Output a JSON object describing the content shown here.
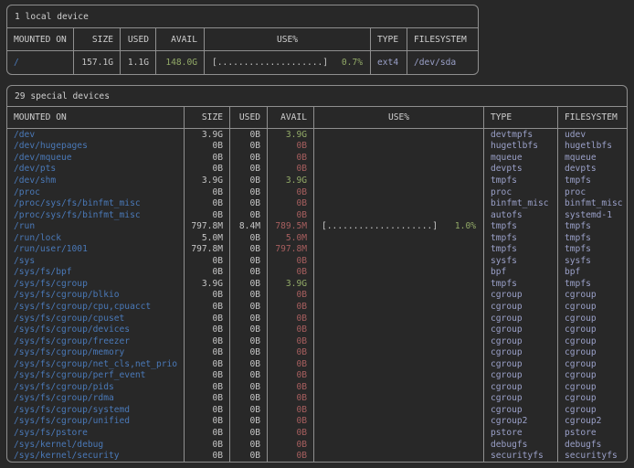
{
  "theme": {
    "bg": "#282828",
    "border": "#8f8f8f",
    "text": "#c6c6c6",
    "heading": "#cfcfcf",
    "blue": "#4a79b8",
    "green": "#93ab68",
    "red": "#a85f5f",
    "lavender": "#9aa0c8"
  },
  "local_table": {
    "title": "1 local device",
    "headers": [
      "MOUNTED ON",
      "SIZE",
      "USED",
      "AVAIL",
      "USE%",
      "TYPE",
      "FILESYSTEM"
    ],
    "rows": [
      {
        "mounted": "/",
        "size": "157.1G",
        "used": "1.1G",
        "avail": "148.0G",
        "avail_color": "green",
        "bar": "[....................]",
        "pct": "0.7%",
        "type": "ext4",
        "filesystem": "/dev/sda"
      }
    ]
  },
  "special_table": {
    "title": "29 special devices",
    "headers": [
      "MOUNTED ON",
      "SIZE",
      "USED",
      "AVAIL",
      "USE%",
      "TYPE",
      "FILESYSTEM"
    ],
    "rows": [
      {
        "mounted": "/dev",
        "size": "3.9G",
        "used": "0B",
        "avail": "3.9G",
        "avail_color": "green",
        "bar": "",
        "pct": "",
        "type": "devtmpfs",
        "filesystem": "udev"
      },
      {
        "mounted": "/dev/hugepages",
        "size": "0B",
        "used": "0B",
        "avail": "0B",
        "avail_color": "red",
        "bar": "",
        "pct": "",
        "type": "hugetlbfs",
        "filesystem": "hugetlbfs"
      },
      {
        "mounted": "/dev/mqueue",
        "size": "0B",
        "used": "0B",
        "avail": "0B",
        "avail_color": "red",
        "bar": "",
        "pct": "",
        "type": "mqueue",
        "filesystem": "mqueue"
      },
      {
        "mounted": "/dev/pts",
        "size": "0B",
        "used": "0B",
        "avail": "0B",
        "avail_color": "red",
        "bar": "",
        "pct": "",
        "type": "devpts",
        "filesystem": "devpts"
      },
      {
        "mounted": "/dev/shm",
        "size": "3.9G",
        "used": "0B",
        "avail": "3.9G",
        "avail_color": "green",
        "bar": "",
        "pct": "",
        "type": "tmpfs",
        "filesystem": "tmpfs"
      },
      {
        "mounted": "/proc",
        "size": "0B",
        "used": "0B",
        "avail": "0B",
        "avail_color": "red",
        "bar": "",
        "pct": "",
        "type": "proc",
        "filesystem": "proc"
      },
      {
        "mounted": "/proc/sys/fs/binfmt_misc",
        "size": "0B",
        "used": "0B",
        "avail": "0B",
        "avail_color": "red",
        "bar": "",
        "pct": "",
        "type": "binfmt_misc",
        "filesystem": "binfmt_misc"
      },
      {
        "mounted": "/proc/sys/fs/binfmt_misc",
        "size": "0B",
        "used": "0B",
        "avail": "0B",
        "avail_color": "red",
        "bar": "",
        "pct": "",
        "type": "autofs",
        "filesystem": "systemd-1"
      },
      {
        "mounted": "/run",
        "size": "797.8M",
        "used": "8.4M",
        "avail": "789.5M",
        "avail_color": "red",
        "bar": "[....................]",
        "pct": "1.0%",
        "type": "tmpfs",
        "filesystem": "tmpfs"
      },
      {
        "mounted": "/run/lock",
        "size": "5.0M",
        "used": "0B",
        "avail": "5.0M",
        "avail_color": "red",
        "bar": "",
        "pct": "",
        "type": "tmpfs",
        "filesystem": "tmpfs"
      },
      {
        "mounted": "/run/user/1001",
        "size": "797.8M",
        "used": "0B",
        "avail": "797.8M",
        "avail_color": "red",
        "bar": "",
        "pct": "",
        "type": "tmpfs",
        "filesystem": "tmpfs"
      },
      {
        "mounted": "/sys",
        "size": "0B",
        "used": "0B",
        "avail": "0B",
        "avail_color": "red",
        "bar": "",
        "pct": "",
        "type": "sysfs",
        "filesystem": "sysfs"
      },
      {
        "mounted": "/sys/fs/bpf",
        "size": "0B",
        "used": "0B",
        "avail": "0B",
        "avail_color": "red",
        "bar": "",
        "pct": "",
        "type": "bpf",
        "filesystem": "bpf"
      },
      {
        "mounted": "/sys/fs/cgroup",
        "size": "3.9G",
        "used": "0B",
        "avail": "3.9G",
        "avail_color": "green",
        "bar": "",
        "pct": "",
        "type": "tmpfs",
        "filesystem": "tmpfs"
      },
      {
        "mounted": "/sys/fs/cgroup/blkio",
        "size": "0B",
        "used": "0B",
        "avail": "0B",
        "avail_color": "red",
        "bar": "",
        "pct": "",
        "type": "cgroup",
        "filesystem": "cgroup"
      },
      {
        "mounted": "/sys/fs/cgroup/cpu,cpuacct",
        "size": "0B",
        "used": "0B",
        "avail": "0B",
        "avail_color": "red",
        "bar": "",
        "pct": "",
        "type": "cgroup",
        "filesystem": "cgroup"
      },
      {
        "mounted": "/sys/fs/cgroup/cpuset",
        "size": "0B",
        "used": "0B",
        "avail": "0B",
        "avail_color": "red",
        "bar": "",
        "pct": "",
        "type": "cgroup",
        "filesystem": "cgroup"
      },
      {
        "mounted": "/sys/fs/cgroup/devices",
        "size": "0B",
        "used": "0B",
        "avail": "0B",
        "avail_color": "red",
        "bar": "",
        "pct": "",
        "type": "cgroup",
        "filesystem": "cgroup"
      },
      {
        "mounted": "/sys/fs/cgroup/freezer",
        "size": "0B",
        "used": "0B",
        "avail": "0B",
        "avail_color": "red",
        "bar": "",
        "pct": "",
        "type": "cgroup",
        "filesystem": "cgroup"
      },
      {
        "mounted": "/sys/fs/cgroup/memory",
        "size": "0B",
        "used": "0B",
        "avail": "0B",
        "avail_color": "red",
        "bar": "",
        "pct": "",
        "type": "cgroup",
        "filesystem": "cgroup"
      },
      {
        "mounted": "/sys/fs/cgroup/net_cls,net_prio",
        "size": "0B",
        "used": "0B",
        "avail": "0B",
        "avail_color": "red",
        "bar": "",
        "pct": "",
        "type": "cgroup",
        "filesystem": "cgroup"
      },
      {
        "mounted": "/sys/fs/cgroup/perf_event",
        "size": "0B",
        "used": "0B",
        "avail": "0B",
        "avail_color": "red",
        "bar": "",
        "pct": "",
        "type": "cgroup",
        "filesystem": "cgroup"
      },
      {
        "mounted": "/sys/fs/cgroup/pids",
        "size": "0B",
        "used": "0B",
        "avail": "0B",
        "avail_color": "red",
        "bar": "",
        "pct": "",
        "type": "cgroup",
        "filesystem": "cgroup"
      },
      {
        "mounted": "/sys/fs/cgroup/rdma",
        "size": "0B",
        "used": "0B",
        "avail": "0B",
        "avail_color": "red",
        "bar": "",
        "pct": "",
        "type": "cgroup",
        "filesystem": "cgroup"
      },
      {
        "mounted": "/sys/fs/cgroup/systemd",
        "size": "0B",
        "used": "0B",
        "avail": "0B",
        "avail_color": "red",
        "bar": "",
        "pct": "",
        "type": "cgroup",
        "filesystem": "cgroup"
      },
      {
        "mounted": "/sys/fs/cgroup/unified",
        "size": "0B",
        "used": "0B",
        "avail": "0B",
        "avail_color": "red",
        "bar": "",
        "pct": "",
        "type": "cgroup2",
        "filesystem": "cgroup2"
      },
      {
        "mounted": "/sys/fs/pstore",
        "size": "0B",
        "used": "0B",
        "avail": "0B",
        "avail_color": "red",
        "bar": "",
        "pct": "",
        "type": "pstore",
        "filesystem": "pstore"
      },
      {
        "mounted": "/sys/kernel/debug",
        "size": "0B",
        "used": "0B",
        "avail": "0B",
        "avail_color": "red",
        "bar": "",
        "pct": "",
        "type": "debugfs",
        "filesystem": "debugfs"
      },
      {
        "mounted": "/sys/kernel/security",
        "size": "0B",
        "used": "0B",
        "avail": "0B",
        "avail_color": "red",
        "bar": "",
        "pct": "",
        "type": "securityfs",
        "filesystem": "securityfs"
      }
    ]
  }
}
